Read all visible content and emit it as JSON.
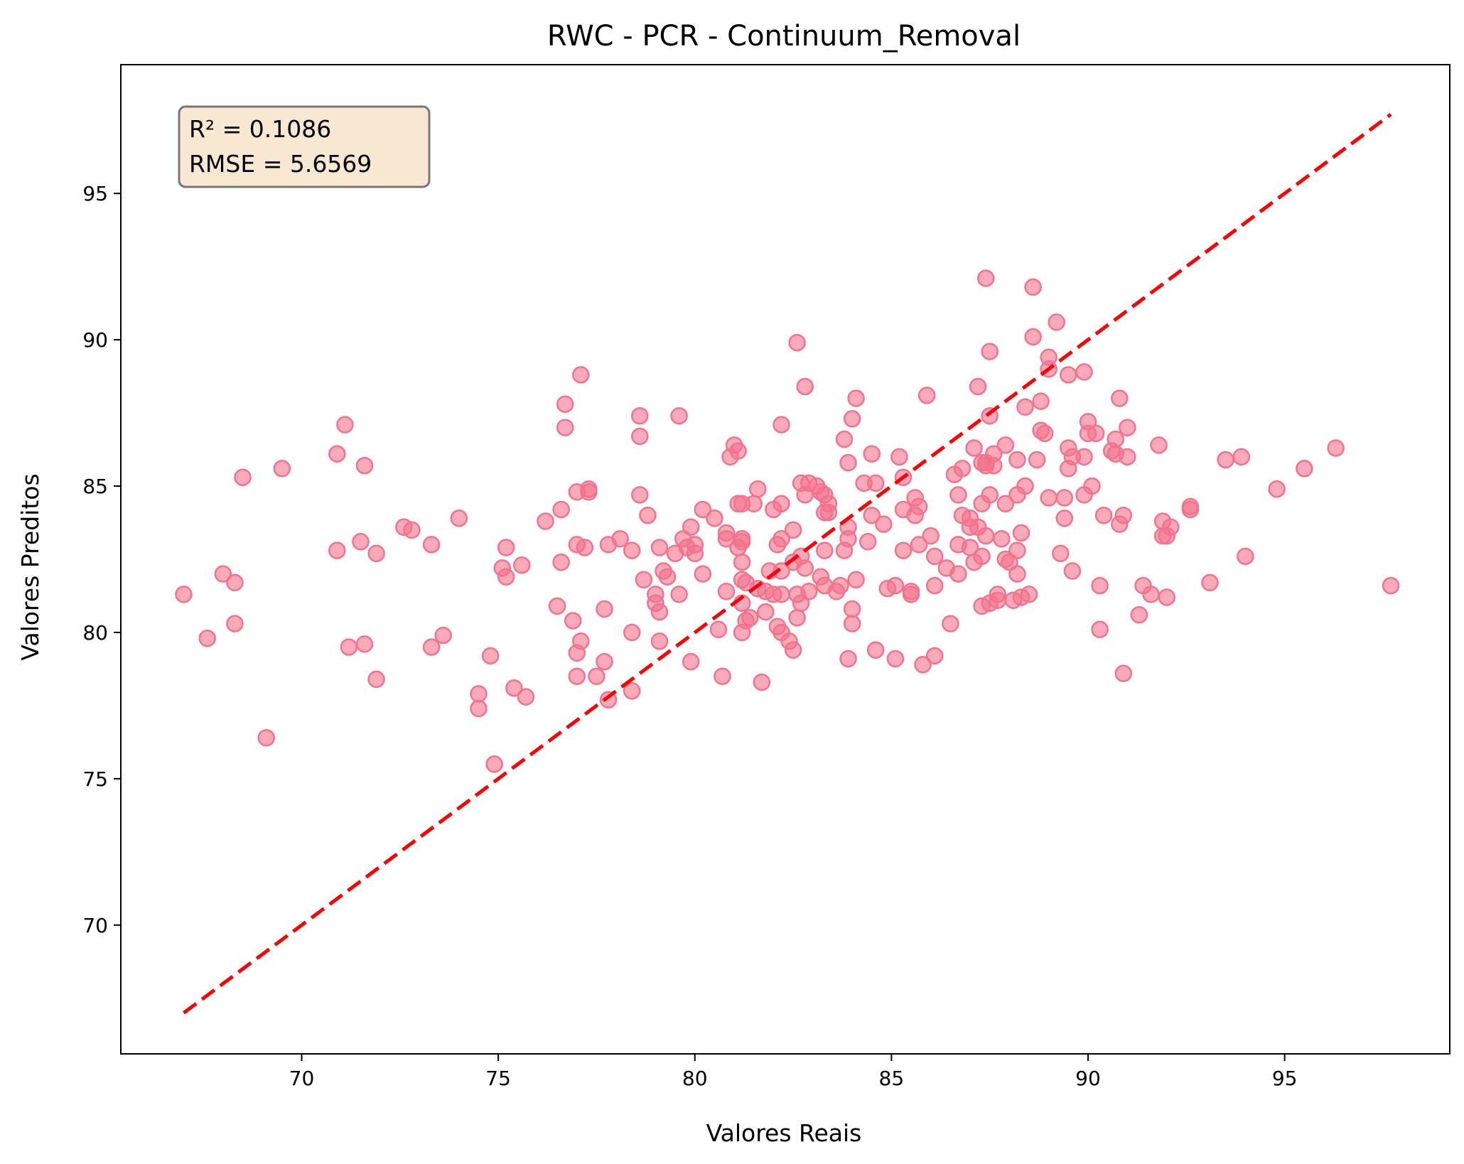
{
  "chart_data": {
    "type": "scatter",
    "title": "RWC - PCR - Continuum_Removal",
    "xlabel": "Valores Reais",
    "ylabel": "Valores Preditos",
    "xlim": [
      65.4,
      99.2
    ],
    "ylim": [
      65.6,
      99.4
    ],
    "xticks": [
      70,
      75,
      80,
      85,
      90,
      95
    ],
    "yticks": [
      70,
      75,
      80,
      85,
      90,
      95
    ],
    "grid": false,
    "stats": {
      "r2_label": "R² = 0.1086",
      "rmse_label": "RMSE = 5.6569"
    },
    "point_color": "#f3728c",
    "line_color": "#ff0000",
    "identity_line": {
      "x": [
        67.0,
        97.7
      ],
      "y": [
        67.0,
        97.7
      ]
    },
    "points": [
      [
        67.0,
        81.3
      ],
      [
        67.6,
        79.8
      ],
      [
        68.0,
        82.0
      ],
      [
        68.3,
        81.7
      ],
      [
        68.3,
        80.3
      ],
      [
        68.5,
        85.3
      ],
      [
        69.1,
        76.4
      ],
      [
        69.5,
        85.6
      ],
      [
        70.9,
        86.1
      ],
      [
        70.9,
        82.8
      ],
      [
        71.1,
        87.1
      ],
      [
        71.2,
        79.5
      ],
      [
        71.5,
        83.1
      ],
      [
        71.6,
        79.6
      ],
      [
        71.6,
        85.7
      ],
      [
        71.9,
        78.4
      ],
      [
        71.9,
        82.7
      ],
      [
        72.6,
        83.6
      ],
      [
        72.8,
        83.5
      ],
      [
        73.3,
        83.0
      ],
      [
        73.3,
        79.5
      ],
      [
        73.6,
        79.9
      ],
      [
        74.0,
        83.9
      ],
      [
        74.5,
        77.9
      ],
      [
        74.5,
        77.4
      ],
      [
        74.8,
        79.2
      ],
      [
        74.9,
        75.5
      ],
      [
        75.1,
        82.2
      ],
      [
        75.2,
        82.9
      ],
      [
        75.2,
        81.9
      ],
      [
        75.4,
        78.1
      ],
      [
        75.6,
        82.3
      ],
      [
        75.7,
        77.8
      ],
      [
        76.2,
        83.8
      ],
      [
        76.5,
        80.9
      ],
      [
        76.6,
        84.2
      ],
      [
        76.6,
        82.4
      ],
      [
        76.7,
        87.8
      ],
      [
        76.7,
        87.0
      ],
      [
        76.9,
        80.4
      ],
      [
        77.0,
        84.8
      ],
      [
        77.0,
        83.0
      ],
      [
        77.0,
        79.3
      ],
      [
        77.0,
        78.5
      ],
      [
        77.1,
        88.8
      ],
      [
        77.1,
        79.7
      ],
      [
        77.2,
        82.9
      ],
      [
        77.3,
        84.9
      ],
      [
        77.3,
        84.8
      ],
      [
        77.5,
        78.5
      ],
      [
        77.7,
        80.8
      ],
      [
        77.7,
        79.0
      ],
      [
        77.8,
        83.0
      ],
      [
        77.8,
        77.7
      ],
      [
        78.1,
        83.2
      ],
      [
        78.4,
        82.8
      ],
      [
        78.4,
        80.0
      ],
      [
        78.4,
        78.0
      ],
      [
        78.6,
        87.4
      ],
      [
        78.6,
        86.7
      ],
      [
        78.6,
        84.7
      ],
      [
        78.7,
        81.8
      ],
      [
        78.8,
        84.0
      ],
      [
        79.0,
        81.3
      ],
      [
        79.0,
        81.0
      ],
      [
        79.1,
        82.9
      ],
      [
        79.1,
        80.7
      ],
      [
        79.1,
        79.7
      ],
      [
        79.2,
        82.1
      ],
      [
        79.3,
        81.9
      ],
      [
        79.5,
        82.7
      ],
      [
        79.6,
        81.3
      ],
      [
        79.6,
        87.4
      ],
      [
        79.7,
        83.2
      ],
      [
        79.8,
        82.9
      ],
      [
        79.9,
        83.6
      ],
      [
        79.9,
        79.0
      ],
      [
        80.0,
        83.0
      ],
      [
        80.0,
        82.7
      ],
      [
        80.2,
        84.2
      ],
      [
        80.2,
        82.0
      ],
      [
        80.5,
        83.9
      ],
      [
        80.6,
        80.1
      ],
      [
        80.7,
        78.5
      ],
      [
        80.8,
        83.4
      ],
      [
        80.8,
        83.2
      ],
      [
        80.8,
        81.4
      ],
      [
        80.9,
        86.0
      ],
      [
        81.0,
        86.4
      ],
      [
        81.1,
        86.2
      ],
      [
        81.1,
        84.4
      ],
      [
        81.1,
        82.9
      ],
      [
        81.2,
        84.4
      ],
      [
        81.2,
        83.2
      ],
      [
        81.2,
        83.1
      ],
      [
        81.2,
        82.4
      ],
      [
        81.2,
        81.8
      ],
      [
        81.2,
        81.0
      ],
      [
        81.2,
        80.0
      ],
      [
        81.3,
        81.7
      ],
      [
        81.3,
        80.4
      ],
      [
        81.4,
        80.5
      ],
      [
        81.5,
        84.4
      ],
      [
        81.6,
        84.9
      ],
      [
        81.6,
        81.5
      ],
      [
        81.7,
        78.3
      ],
      [
        81.8,
        81.4
      ],
      [
        81.8,
        80.7
      ],
      [
        81.9,
        82.1
      ],
      [
        82.0,
        84.2
      ],
      [
        82.0,
        81.3
      ],
      [
        82.1,
        83.0
      ],
      [
        82.1,
        80.2
      ],
      [
        82.2,
        87.1
      ],
      [
        82.2,
        84.4
      ],
      [
        82.2,
        83.2
      ],
      [
        82.2,
        82.1
      ],
      [
        82.2,
        81.3
      ],
      [
        82.2,
        80.0
      ],
      [
        82.4,
        79.7
      ],
      [
        82.5,
        83.5
      ],
      [
        82.5,
        82.4
      ],
      [
        82.5,
        79.4
      ],
      [
        82.6,
        89.9
      ],
      [
        82.6,
        81.3
      ],
      [
        82.6,
        80.5
      ],
      [
        82.7,
        85.1
      ],
      [
        82.7,
        82.6
      ],
      [
        82.7,
        81.0
      ],
      [
        82.8,
        88.4
      ],
      [
        82.8,
        84.7
      ],
      [
        82.8,
        82.2
      ],
      [
        82.9,
        85.1
      ],
      [
        82.9,
        81.4
      ],
      [
        83.1,
        85.0
      ],
      [
        83.2,
        84.8
      ],
      [
        83.2,
        81.9
      ],
      [
        83.3,
        84.7
      ],
      [
        83.3,
        84.1
      ],
      [
        83.3,
        82.8
      ],
      [
        83.3,
        81.6
      ],
      [
        83.4,
        84.4
      ],
      [
        83.4,
        84.1
      ],
      [
        83.6,
        81.4
      ],
      [
        83.7,
        81.6
      ],
      [
        83.8,
        86.6
      ],
      [
        83.8,
        82.8
      ],
      [
        83.9,
        85.8
      ],
      [
        83.9,
        83.6
      ],
      [
        83.9,
        83.2
      ],
      [
        83.9,
        79.1
      ],
      [
        84.0,
        87.3
      ],
      [
        84.0,
        80.8
      ],
      [
        84.0,
        80.3
      ],
      [
        84.1,
        88.0
      ],
      [
        84.1,
        81.8
      ],
      [
        84.3,
        85.1
      ],
      [
        84.4,
        83.1
      ],
      [
        84.5,
        86.1
      ],
      [
        84.5,
        84.0
      ],
      [
        84.6,
        85.1
      ],
      [
        84.6,
        79.4
      ],
      [
        84.8,
        83.7
      ],
      [
        84.9,
        81.5
      ],
      [
        85.1,
        81.6
      ],
      [
        85.1,
        79.1
      ],
      [
        85.2,
        86.0
      ],
      [
        85.3,
        85.3
      ],
      [
        85.3,
        84.2
      ],
      [
        85.3,
        82.8
      ],
      [
        85.5,
        81.4
      ],
      [
        85.5,
        81.3
      ],
      [
        85.6,
        84.6
      ],
      [
        85.6,
        84.0
      ],
      [
        85.7,
        84.3
      ],
      [
        85.7,
        83.0
      ],
      [
        85.8,
        78.9
      ],
      [
        85.9,
        88.1
      ],
      [
        86.0,
        83.3
      ],
      [
        86.1,
        82.6
      ],
      [
        86.1,
        79.2
      ],
      [
        86.1,
        81.6
      ],
      [
        86.4,
        82.2
      ],
      [
        86.5,
        80.3
      ],
      [
        86.6,
        85.4
      ],
      [
        86.7,
        84.7
      ],
      [
        86.7,
        83.0
      ],
      [
        86.7,
        82.0
      ],
      [
        86.8,
        85.6
      ],
      [
        86.8,
        84.0
      ],
      [
        87.0,
        83.9
      ],
      [
        87.0,
        83.6
      ],
      [
        87.0,
        82.9
      ],
      [
        87.1,
        86.3
      ],
      [
        87.1,
        82.4
      ],
      [
        87.2,
        88.4
      ],
      [
        87.2,
        83.6
      ],
      [
        87.3,
        85.8
      ],
      [
        87.3,
        84.4
      ],
      [
        87.3,
        82.6
      ],
      [
        87.3,
        80.9
      ],
      [
        87.4,
        92.1
      ],
      [
        87.4,
        85.8
      ],
      [
        87.4,
        85.7
      ],
      [
        87.4,
        83.3
      ],
      [
        87.5,
        89.6
      ],
      [
        87.5,
        87.4
      ],
      [
        87.5,
        84.7
      ],
      [
        87.5,
        81.0
      ],
      [
        87.6,
        86.1
      ],
      [
        87.6,
        85.7
      ],
      [
        87.7,
        81.3
      ],
      [
        87.7,
        81.1
      ],
      [
        87.8,
        83.2
      ],
      [
        87.9,
        86.4
      ],
      [
        87.9,
        84.4
      ],
      [
        87.9,
        82.5
      ],
      [
        88.0,
        82.4
      ],
      [
        88.1,
        81.1
      ],
      [
        88.2,
        85.9
      ],
      [
        88.2,
        84.7
      ],
      [
        88.2,
        82.8
      ],
      [
        88.2,
        82.0
      ],
      [
        88.3,
        83.4
      ],
      [
        88.3,
        81.2
      ],
      [
        88.4,
        87.7
      ],
      [
        88.4,
        85.0
      ],
      [
        88.5,
        81.3
      ],
      [
        88.6,
        91.8
      ],
      [
        88.6,
        90.1
      ],
      [
        88.7,
        85.9
      ],
      [
        88.8,
        87.9
      ],
      [
        88.8,
        86.9
      ],
      [
        88.9,
        86.8
      ],
      [
        89.0,
        89.4
      ],
      [
        89.0,
        89.0
      ],
      [
        89.0,
        84.6
      ],
      [
        89.2,
        90.6
      ],
      [
        89.3,
        82.7
      ],
      [
        89.4,
        84.6
      ],
      [
        89.4,
        83.9
      ],
      [
        89.5,
        86.3
      ],
      [
        89.5,
        85.6
      ],
      [
        89.5,
        88.8
      ],
      [
        89.6,
        86.0
      ],
      [
        89.6,
        82.1
      ],
      [
        89.9,
        88.9
      ],
      [
        89.9,
        86.0
      ],
      [
        89.9,
        84.7
      ],
      [
        90.0,
        87.2
      ],
      [
        90.0,
        86.8
      ],
      [
        90.1,
        85.0
      ],
      [
        90.2,
        86.8
      ],
      [
        90.3,
        81.6
      ],
      [
        90.3,
        80.1
      ],
      [
        90.4,
        84.0
      ],
      [
        90.6,
        86.2
      ],
      [
        90.7,
        86.6
      ],
      [
        90.7,
        86.1
      ],
      [
        90.8,
        88.0
      ],
      [
        90.8,
        83.7
      ],
      [
        90.9,
        84.0
      ],
      [
        90.9,
        78.6
      ],
      [
        91.0,
        86.0
      ],
      [
        91.0,
        87.0
      ],
      [
        91.3,
        80.6
      ],
      [
        91.4,
        81.6
      ],
      [
        91.6,
        81.3
      ],
      [
        91.8,
        86.4
      ],
      [
        91.9,
        83.8
      ],
      [
        91.9,
        83.3
      ],
      [
        92.0,
        83.3
      ],
      [
        92.0,
        81.2
      ],
      [
        92.1,
        83.6
      ],
      [
        92.6,
        84.3
      ],
      [
        92.6,
        84.2
      ],
      [
        93.1,
        81.7
      ],
      [
        93.5,
        85.9
      ],
      [
        93.9,
        86.0
      ],
      [
        94.0,
        82.6
      ],
      [
        94.8,
        84.9
      ],
      [
        95.5,
        85.6
      ],
      [
        96.3,
        86.3
      ],
      [
        97.7,
        81.6
      ]
    ]
  }
}
